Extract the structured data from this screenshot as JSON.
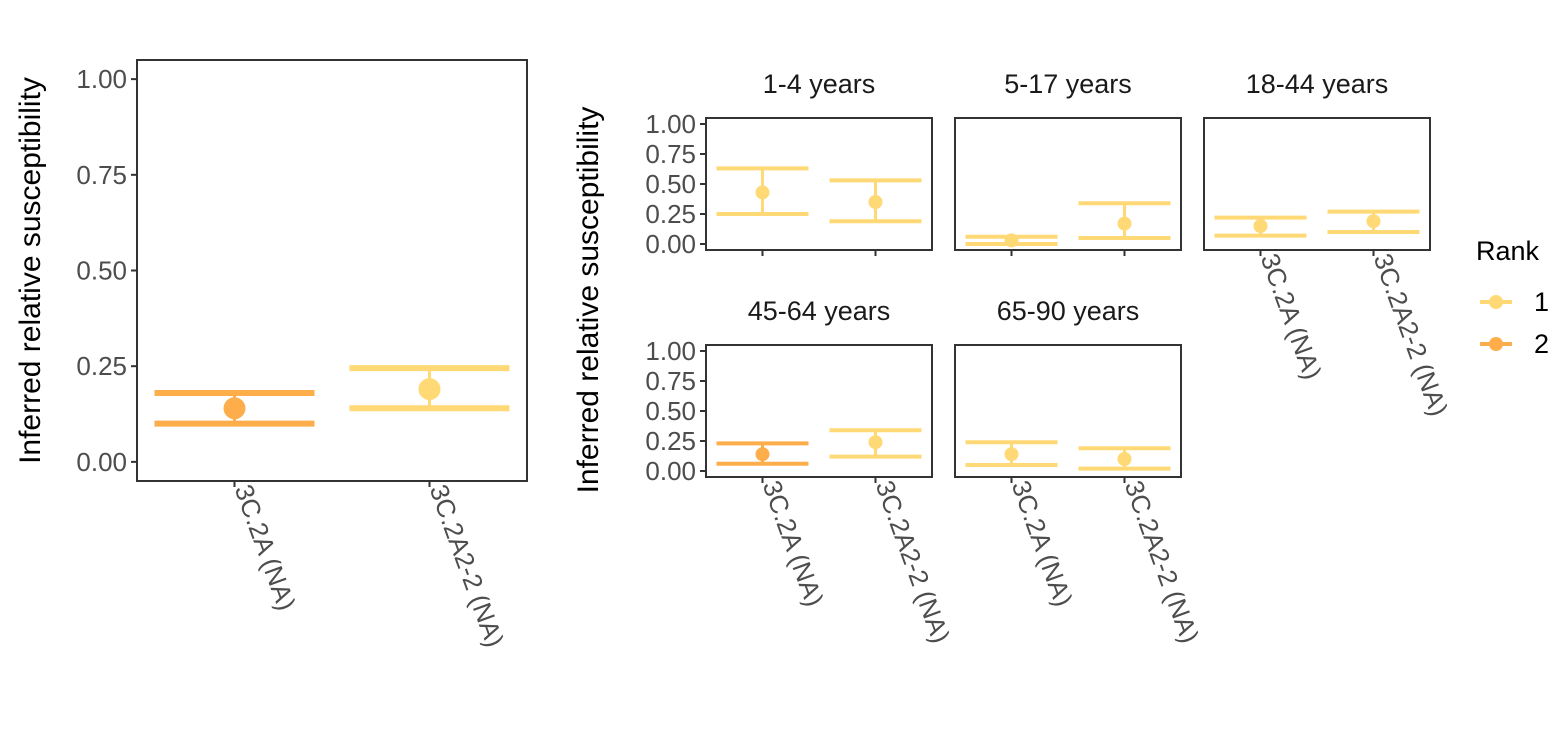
{
  "colors": {
    "rank1": "#ffd976",
    "rank2": "#fdae4b",
    "axis": "#333333",
    "tick_text": "#4d4d4d"
  },
  "legend": {
    "title": "Rank",
    "placement": "right",
    "items": [
      {
        "label": "1",
        "color": "#ffd976"
      },
      {
        "label": "2",
        "color": "#fdae4b"
      }
    ]
  },
  "chart_data": [
    {
      "type": "scatter",
      "subtype": "pointrange_errorbar",
      "panel": "overall",
      "title": "",
      "xlabel": "",
      "ylabel": "Inferred relative susceptibility",
      "ylim": [
        -0.05,
        1.05
      ],
      "yticks": [
        "0.00",
        "0.25",
        "0.50",
        "0.75",
        "1.00"
      ],
      "categories": [
        "3C.2A (NA)",
        "3C.2A2-2 (NA)"
      ],
      "points": [
        {
          "category": "3C.2A (NA)",
          "rank": "2",
          "y": 0.14,
          "lower": 0.1,
          "upper": 0.18
        },
        {
          "category": "3C.2A2-2 (NA)",
          "rank": "1",
          "y": 0.19,
          "lower": 0.14,
          "upper": 0.245
        }
      ]
    },
    {
      "type": "scatter",
      "subtype": "pointrange_errorbar_facets",
      "panel": "by age group",
      "title": "",
      "xlabel": "",
      "ylabel": "Inferred relative susceptibility",
      "ylim": [
        -0.05,
        1.05
      ],
      "yticks": [
        "0.00",
        "0.25",
        "0.50",
        "0.75",
        "1.00"
      ],
      "categories": [
        "3C.2A (NA)",
        "3C.2A2-2 (NA)"
      ],
      "facets": [
        {
          "label": "1-4 years",
          "points": [
            {
              "category": "3C.2A (NA)",
              "rank": "1",
              "y": 0.43,
              "lower": 0.25,
              "upper": 0.63
            },
            {
              "category": "3C.2A2-2 (NA)",
              "rank": "1",
              "y": 0.35,
              "lower": 0.19,
              "upper": 0.53
            }
          ]
        },
        {
          "label": "5-17 years",
          "points": [
            {
              "category": "3C.2A (NA)",
              "rank": "1",
              "y": 0.03,
              "lower": 0.0,
              "upper": 0.06
            },
            {
              "category": "3C.2A2-2 (NA)",
              "rank": "1",
              "y": 0.17,
              "lower": 0.05,
              "upper": 0.34
            }
          ]
        },
        {
          "label": "18-44 years",
          "points": [
            {
              "category": "3C.2A (NA)",
              "rank": "1",
              "y": 0.15,
              "lower": 0.07,
              "upper": 0.22
            },
            {
              "category": "3C.2A2-2 (NA)",
              "rank": "1",
              "y": 0.19,
              "lower": 0.1,
              "upper": 0.27
            }
          ]
        },
        {
          "label": "45-64 years",
          "points": [
            {
              "category": "3C.2A (NA)",
              "rank": "2",
              "y": 0.14,
              "lower": 0.06,
              "upper": 0.23
            },
            {
              "category": "3C.2A2-2 (NA)",
              "rank": "1",
              "y": 0.24,
              "lower": 0.12,
              "upper": 0.34
            }
          ]
        },
        {
          "label": "65-90 years",
          "points": [
            {
              "category": "3C.2A (NA)",
              "rank": "1",
              "y": 0.14,
              "lower": 0.05,
              "upper": 0.24
            },
            {
              "category": "3C.2A2-2 (NA)",
              "rank": "1",
              "y": 0.1,
              "lower": 0.02,
              "upper": 0.19
            }
          ]
        }
      ]
    }
  ]
}
